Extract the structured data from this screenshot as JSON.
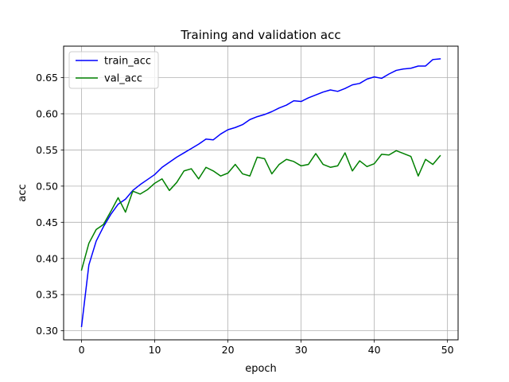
{
  "chart_data": {
    "type": "line",
    "title": "Training and validation acc",
    "xlabel": "epoch",
    "ylabel": "acc",
    "xlim": [
      -2.45,
      51.45
    ],
    "ylim": [
      0.2875,
      0.6935
    ],
    "xticks": [
      0,
      10,
      20,
      30,
      40,
      50
    ],
    "yticks": [
      0.3,
      0.35,
      0.4,
      0.45,
      0.5,
      0.55,
      0.6,
      0.65
    ],
    "grid": true,
    "legend_position": "top-left",
    "x": [
      0,
      1,
      2,
      3,
      4,
      5,
      6,
      7,
      8,
      9,
      10,
      11,
      12,
      13,
      14,
      15,
      16,
      17,
      18,
      19,
      20,
      21,
      22,
      23,
      24,
      25,
      26,
      27,
      28,
      29,
      30,
      31,
      32,
      33,
      34,
      35,
      36,
      37,
      38,
      39,
      40,
      41,
      42,
      43,
      44,
      45,
      46,
      47,
      48,
      49
    ],
    "series": [
      {
        "name": "train_acc",
        "color": "#0000ff",
        "values": [
          0.306,
          0.391,
          0.424,
          0.444,
          0.461,
          0.475,
          0.482,
          0.494,
          0.502,
          0.509,
          0.516,
          0.526,
          0.533,
          0.54,
          0.546,
          0.552,
          0.558,
          0.565,
          0.564,
          0.572,
          0.578,
          0.581,
          0.585,
          0.592,
          0.596,
          0.599,
          0.603,
          0.608,
          0.612,
          0.618,
          0.617,
          0.622,
          0.626,
          0.63,
          0.633,
          0.631,
          0.635,
          0.64,
          0.642,
          0.648,
          0.651,
          0.649,
          0.655,
          0.66,
          0.662,
          0.663,
          0.666,
          0.666,
          0.675,
          0.676
        ]
      },
      {
        "name": "val_acc",
        "color": "#008000",
        "values": [
          0.384,
          0.421,
          0.44,
          0.447,
          0.465,
          0.484,
          0.464,
          0.493,
          0.489,
          0.495,
          0.504,
          0.51,
          0.494,
          0.505,
          0.521,
          0.524,
          0.51,
          0.526,
          0.521,
          0.514,
          0.518,
          0.53,
          0.517,
          0.514,
          0.54,
          0.538,
          0.517,
          0.53,
          0.537,
          0.534,
          0.528,
          0.53,
          0.545,
          0.53,
          0.526,
          0.528,
          0.546,
          0.521,
          0.535,
          0.527,
          0.531,
          0.544,
          0.543,
          0.549,
          0.545,
          0.541,
          0.514,
          0.537,
          0.53,
          0.542
        ]
      }
    ]
  }
}
